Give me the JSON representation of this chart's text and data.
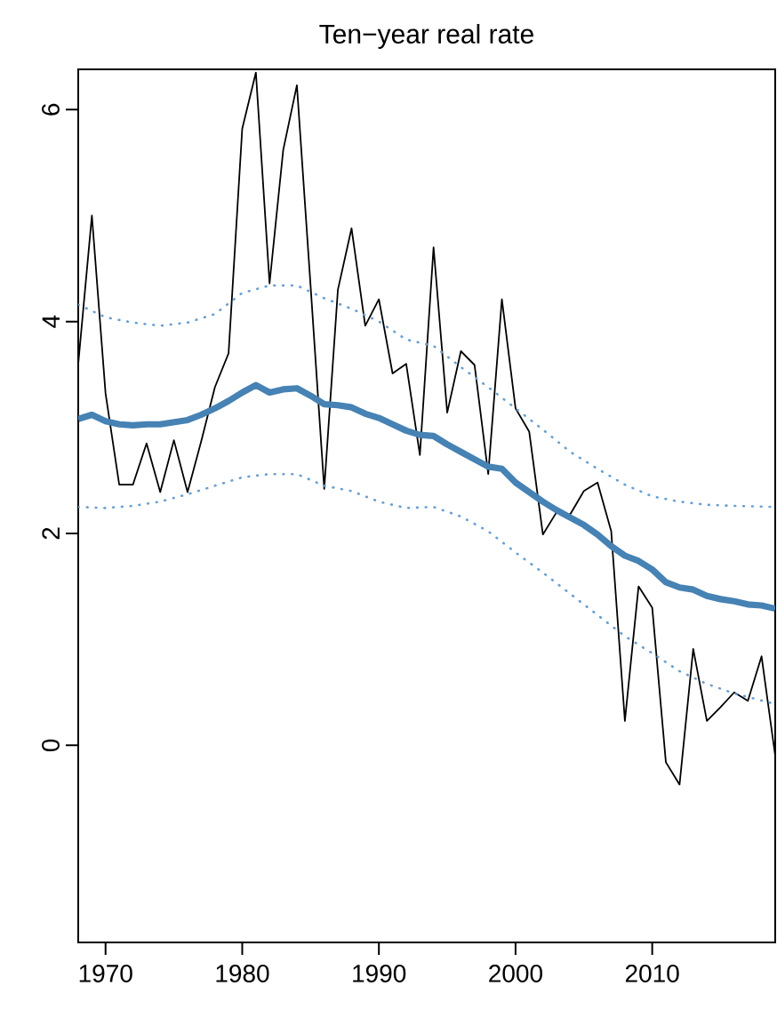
{
  "chart_data": {
    "type": "line",
    "title": "Ten−year real rate",
    "xlim": [
      1968,
      2019
    ],
    "ylim": [
      -1.86,
      6.38
    ],
    "xticks": [
      1970,
      1980,
      1990,
      2000,
      2010
    ],
    "yticks": [
      0,
      2,
      4,
      6
    ],
    "series": [
      {
        "color": "#000000",
        "line_style": "solid",
        "x": [
          1968,
          1969,
          1970,
          1971,
          1972,
          1973,
          1974,
          1975,
          1976,
          1977,
          1978,
          1979,
          1980,
          1981,
          1982,
          1983,
          1984,
          1985,
          1986,
          1987,
          1988,
          1989,
          1990,
          1991,
          1992,
          1993,
          1994,
          1995,
          1996,
          1997,
          1998,
          1999,
          2000,
          2001,
          2002,
          2003,
          2004,
          2005,
          2006,
          2007,
          2008,
          2009,
          2010,
          2011,
          2012,
          2013,
          2014,
          2015,
          2016,
          2017,
          2018,
          2019
        ],
        "values": [
          3.6,
          5.0,
          3.32,
          2.46,
          2.46,
          2.85,
          2.39,
          2.88,
          2.39,
          2.87,
          3.38,
          3.7,
          5.82,
          6.35,
          4.36,
          5.62,
          6.23,
          4.34,
          2.42,
          4.3,
          4.88,
          3.96,
          4.21,
          3.51,
          3.6,
          2.74,
          4.7,
          3.14,
          3.72,
          3.59,
          2.56,
          4.21,
          3.18,
          2.96,
          1.99,
          2.2,
          2.18,
          2.4,
          2.48,
          2.02,
          0.23,
          1.5,
          1.3,
          -0.16,
          -0.37,
          0.91,
          0.23,
          0.36,
          0.5,
          0.42,
          0.84,
          -0.1
        ]
      },
      {
        "color": "#4682b4",
        "line_style": "solid",
        "x": [
          1968,
          1969,
          1970,
          1971,
          1972,
          1973,
          1974,
          1975,
          1976,
          1977,
          1978,
          1979,
          1980,
          1981,
          1982,
          1983,
          1984,
          1985,
          1986,
          1987,
          1988,
          1989,
          1990,
          1991,
          1992,
          1993,
          1994,
          1995,
          1996,
          1997,
          1998,
          1999,
          2000,
          2001,
          2002,
          2003,
          2004,
          2005,
          2006,
          2007,
          2008,
          2009,
          2010,
          2011,
          2012,
          2013,
          2014,
          2015,
          2016,
          2017,
          2018,
          2019
        ],
        "values": [
          3.08,
          3.12,
          3.06,
          3.03,
          3.02,
          3.03,
          3.03,
          3.05,
          3.07,
          3.12,
          3.18,
          3.25,
          3.33,
          3.4,
          3.33,
          3.36,
          3.37,
          3.3,
          3.22,
          3.21,
          3.19,
          3.13,
          3.09,
          3.03,
          2.97,
          2.93,
          2.92,
          2.84,
          2.77,
          2.7,
          2.63,
          2.61,
          2.48,
          2.39,
          2.3,
          2.22,
          2.15,
          2.08,
          1.99,
          1.88,
          1.79,
          1.74,
          1.66,
          1.54,
          1.49,
          1.47,
          1.41,
          1.38,
          1.36,
          1.33,
          1.32,
          1.29
        ]
      },
      {
        "color": "#6a9fd0",
        "line_style": "dotted",
        "x": [
          1968,
          1970,
          1972,
          1974,
          1976,
          1978,
          1980,
          1982,
          1984,
          1986,
          1988,
          1990,
          1992,
          1994,
          1996,
          1998,
          2000,
          2002,
          2004,
          2006,
          2008,
          2010,
          2012,
          2014,
          2016,
          2019
        ],
        "values": [
          4.16,
          4.04,
          3.99,
          3.96,
          3.99,
          4.07,
          4.27,
          4.34,
          4.34,
          4.22,
          4.12,
          4.0,
          3.83,
          3.77,
          3.57,
          3.38,
          3.18,
          2.98,
          2.77,
          2.61,
          2.46,
          2.35,
          2.3,
          2.27,
          2.26,
          2.25
        ]
      },
      {
        "color": "#6a9fd0",
        "line_style": "dotted",
        "x": [
          1968,
          1970,
          1972,
          1974,
          1976,
          1978,
          1980,
          1982,
          1984,
          1986,
          1988,
          1990,
          1992,
          1994,
          1996,
          1998,
          2000,
          2002,
          2004,
          2006,
          2008,
          2010,
          2012,
          2014,
          2016,
          2019
        ],
        "values": [
          2.25,
          2.24,
          2.26,
          2.3,
          2.37,
          2.45,
          2.53,
          2.56,
          2.56,
          2.45,
          2.4,
          2.3,
          2.24,
          2.25,
          2.16,
          2.02,
          1.82,
          1.63,
          1.43,
          1.23,
          1.03,
          0.87,
          0.7,
          0.58,
          0.49,
          0.39
        ]
      }
    ]
  }
}
